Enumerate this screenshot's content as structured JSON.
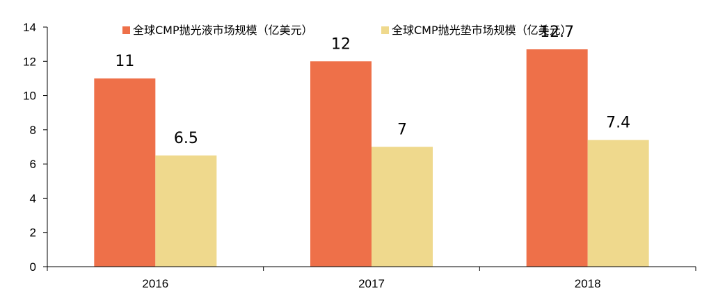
{
  "colors": {
    "series_1": "#EE7049",
    "series_2": "#EFD98D",
    "axis": "#000000"
  },
  "chart_data": {
    "type": "bar",
    "title": "",
    "xlabel": "",
    "ylabel": "",
    "categories": [
      "2016",
      "2017",
      "2018"
    ],
    "series": [
      {
        "name": "全球CMP抛光液市场规模（亿美元）",
        "values": [
          11,
          12,
          12.7
        ],
        "labels": [
          "11",
          "12",
          "12.7"
        ]
      },
      {
        "name": "全球CMP抛光垫市场规模（亿美元）",
        "values": [
          6.5,
          7,
          7.4
        ],
        "labels": [
          "6.5",
          "7",
          "7.4"
        ]
      }
    ],
    "ylim": [
      0,
      14
    ],
    "yticks": [
      "0",
      "2",
      "4",
      "6",
      "8",
      "10",
      "12",
      "14"
    ],
    "grid": false,
    "legend_position": "top"
  }
}
